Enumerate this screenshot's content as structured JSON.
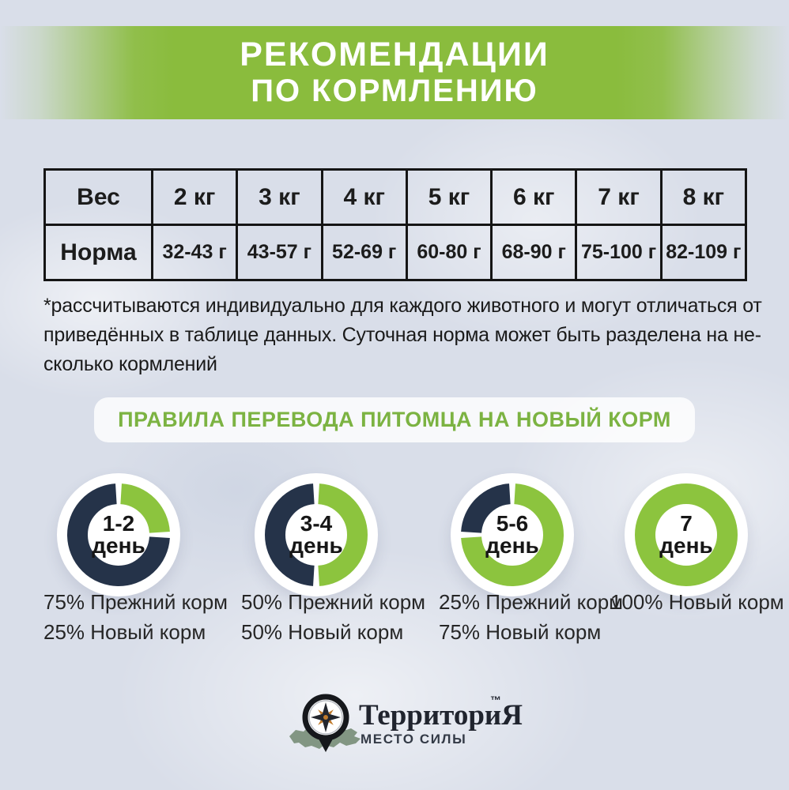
{
  "colors": {
    "background": "#d9dee9",
    "banner_green": "#8abc3d",
    "heading_green": "#7cb342",
    "donut_green": "#8cc43e",
    "navy": "#253349",
    "text": "#1c1c1c",
    "map_sage": "#7c917c",
    "compass_orange": "#c07a2b"
  },
  "banner": {
    "line1": "РЕКОМЕНДАЦИИ",
    "line2": "ПО КОРМЛЕНИЮ"
  },
  "feeding_table": {
    "header_label": "Вес",
    "row_label": "Норма",
    "weights": [
      "2 кг",
      "3 кг",
      "4 кг",
      "5 кг",
      "6 кг",
      "7 кг",
      "8 кг"
    ],
    "norms": [
      "32-43 г",
      "43-57 г",
      "52-69 г",
      "60-80 г",
      "68-90 г",
      "75-100 г",
      "82-109 г"
    ]
  },
  "footnote": {
    "lines": [
      "*рассчитываются индивидуально для каждого животного и могут отличаться от",
      "приведённых в таблице данных. Суточная норма может быть разделена на не-",
      "сколько кормлений"
    ]
  },
  "transition": {
    "heading": "ПРАВИЛА ПЕРЕВОДА ПИТОМЦА НА НОВЫЙ КОРМ",
    "steps": [
      {
        "day": "1-2",
        "day_word": "день",
        "old_pct": 75,
        "new_pct": 25,
        "label_line1": "75% Прежний корм",
        "label_line2": "25% Новый корм"
      },
      {
        "day": "3-4",
        "day_word": "день",
        "old_pct": 50,
        "new_pct": 50,
        "label_line1": "50% Прежний корм",
        "label_line2": "50% Новый корм"
      },
      {
        "day": "5-6",
        "day_word": "день",
        "old_pct": 25,
        "new_pct": 75,
        "label_line1": "25% Прежний корм",
        "label_line2": "75% Новый корм"
      },
      {
        "day": "7",
        "day_word": "день",
        "old_pct": 0,
        "new_pct": 100,
        "label_line1": "100% Новый корм",
        "label_line2": ""
      }
    ]
  },
  "logo": {
    "brand": "ТерриториЯ",
    "tm": "™",
    "tagline": "МЕСТО СИЛЫ"
  },
  "chart_data": [
    {
      "type": "table",
      "title": "Рекомендации по кормлению",
      "columns": [
        "Вес",
        "2 кг",
        "3 кг",
        "4 кг",
        "5 кг",
        "6 кг",
        "7 кг",
        "8 кг"
      ],
      "rows": [
        [
          "Норма",
          "32-43 г",
          "43-57 г",
          "52-69 г",
          "60-80 г",
          "68-90 г",
          "75-100 г",
          "82-109 г"
        ]
      ]
    },
    {
      "type": "pie",
      "title": "1-2 день",
      "labels": [
        "Прежний корм",
        "Новый корм"
      ],
      "values": [
        75,
        25
      ]
    },
    {
      "type": "pie",
      "title": "3-4 день",
      "labels": [
        "Прежний корм",
        "Новый корм"
      ],
      "values": [
        50,
        50
      ]
    },
    {
      "type": "pie",
      "title": "5-6 день",
      "labels": [
        "Прежний корм",
        "Новый корм"
      ],
      "values": [
        25,
        75
      ]
    },
    {
      "type": "pie",
      "title": "7 день",
      "labels": [
        "Прежний корм",
        "Новый корм"
      ],
      "values": [
        0,
        100
      ]
    }
  ]
}
